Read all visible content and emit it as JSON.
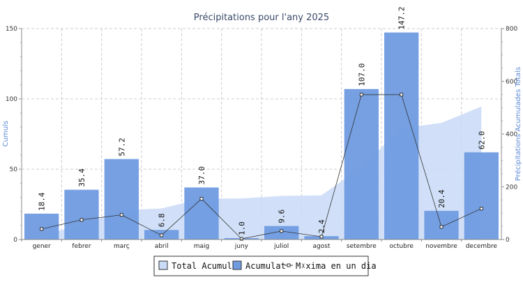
{
  "chart_data": {
    "type": "bar",
    "title": "Précipitations pour l'any 2025",
    "categories": [
      "gener",
      "febrer",
      "març",
      "abril",
      "maig",
      "juny",
      "juliol",
      "agost",
      "setembre",
      "octubre",
      "novembre",
      "decembre"
    ],
    "ylabel_left": "Cumuls",
    "ylabel_right": "Précipitations Acumulades Totals",
    "ylim_left": [
      0,
      150
    ],
    "ylim_right": [
      0,
      800
    ],
    "yticks_left": [
      0,
      50,
      100,
      150
    ],
    "yticks_right": [
      0,
      200,
      400,
      600,
      800
    ],
    "grid": true,
    "legend_position": "bottom-center",
    "series": [
      {
        "name": "Total Acumulat",
        "type": "area",
        "axis": "right",
        "color": "#c9dbf7",
        "values": [
          18.4,
          53.8,
          111.0,
          117.8,
          154.8,
          155.8,
          165.4,
          167.8,
          274.8,
          422.0,
          442.4,
          504.4
        ]
      },
      {
        "name": "Acumulat",
        "type": "bar",
        "axis": "left",
        "color": "#6f9be0",
        "values": [
          18.4,
          35.4,
          57.2,
          6.8,
          37.0,
          1.0,
          9.6,
          2.4,
          107.0,
          147.2,
          20.4,
          62.0
        ],
        "labels": [
          "18.4",
          "35.4",
          "57.2",
          "6.8",
          "37.0",
          "1.0",
          "9.6",
          "2.4",
          "107.0",
          "147.2",
          "20.4",
          "62.0"
        ]
      },
      {
        "name": "Màxima en un dia",
        "type": "line",
        "axis": "left",
        "color": "#333333",
        "values": [
          7.5,
          14.0,
          17.5,
          3.0,
          29.0,
          0.5,
          6.0,
          2.0,
          103.0,
          103.0,
          9.0,
          22.0
        ]
      }
    ]
  },
  "legend_labels": {
    "total": "Total Acumulat",
    "acumulat": "Acumulat",
    "maxima": "Mᵡxima en un dia"
  }
}
